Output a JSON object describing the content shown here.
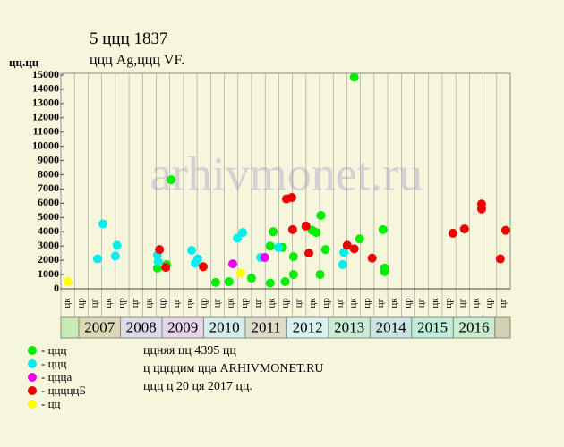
{
  "chart_data": {
    "type": "scatter",
    "title": "5 ццц 1837",
    "subtitle": "ццц Ag,ццц VF.",
    "y_label": "цц.цц",
    "watermark": "arhivmonet.ru",
    "ylim": [
      0,
      15000
    ],
    "yticks": [
      0,
      1000,
      2000,
      3000,
      4000,
      5000,
      6000,
      7000,
      8000,
      9000,
      10000,
      11000,
      12000,
      13000,
      14000,
      15000
    ],
    "xlim": [
      2006.57,
      2017.37
    ],
    "year_labels": [
      "2007",
      "2008",
      "2009",
      "2010",
      "2011",
      "2012",
      "2013",
      "2014",
      "2015",
      "2016"
    ],
    "year_colors": [
      "#ddd8b4",
      "#dcdce8",
      "#e6d4e8",
      "#d4ecec",
      "#dcdcc8",
      "#d8f2f2",
      "#c8ecd4",
      "#cce4e4",
      "#bfeed8",
      "#c8eccc"
    ],
    "quarter_labels": [
      "цк",
      "цр",
      "цг",
      "цк",
      "цр",
      "цг",
      "цк",
      "цр",
      "цг",
      "цк",
      "цр",
      "цг",
      "цк",
      "цр",
      "цг",
      "цк",
      "цр",
      "цг",
      "цк",
      "цр",
      "цг",
      "цк",
      "цр",
      "цг",
      "цк",
      "цр",
      "цг",
      "цк",
      "цр",
      "цг",
      "цк",
      "цр",
      "цг"
    ],
    "series": [
      {
        "name": "- ццц",
        "color": "#00ee00",
        "x": [
          2008.89,
          2009.11,
          2009.22,
          2010.29,
          2010.61,
          2011.15,
          2011.6,
          2011.67,
          2011.6,
          2011.9,
          2011.96,
          2012.16,
          2012.16,
          2012.61,
          2012.71,
          2012.82,
          2012.8,
          2012.93,
          2013.62,
          2013.75,
          2014.31,
          2014.35,
          2014.35
        ],
        "values": [
          1450,
          1700,
          7650,
          450,
          500,
          750,
          3000,
          4000,
          400,
          2900,
          500,
          2250,
          1000,
          4100,
          3950,
          5150,
          1000,
          2750,
          14850,
          3500,
          4150,
          1450,
          1200
        ]
      },
      {
        "name": "- ццц",
        "color": "#00eeee",
        "x": [
          2007.45,
          2007.58,
          2007.88,
          2007.92,
          2008.89,
          2008.91,
          2009.71,
          2009.8,
          2009.86,
          2010.81,
          2010.94,
          2011.37,
          2011.8,
          2013.37,
          2013.34
        ],
        "values": [
          2100,
          4550,
          2300,
          3050,
          2350,
          1900,
          2700,
          1800,
          2100,
          3550,
          3950,
          2200,
          2900,
          2550,
          1700
        ]
      },
      {
        "name": "- ццца",
        "color": "#ee00ee",
        "x": [
          2010.7,
          2011.47
        ],
        "values": [
          1750,
          2200
        ]
      },
      {
        "name": "- цццццБ",
        "color": "#ee0000",
        "x": [
          2008.94,
          2009.09,
          2009.99,
          2011.99,
          2012.12,
          2012.14,
          2012.46,
          2012.53,
          2013.45,
          2013.62,
          2014.05,
          2015.99,
          2016.27,
          2016.68,
          2016.68,
          2017.13,
          2017.26
        ],
        "values": [
          2750,
          1500,
          1550,
          6300,
          6400,
          4150,
          4400,
          2500,
          3050,
          2800,
          2150,
          3900,
          4200,
          5950,
          5600,
          2100,
          4100
        ]
      },
      {
        "name": "- цц",
        "color": "#ffff00",
        "x": [
          2006.74,
          2010.89
        ],
        "values": [
          500,
          1100
        ]
      }
    ],
    "notes": [
      "ццняя цц 4395 цц",
      "ц ццццим цца ARHIVMONET.RU",
      "ццц ц 20 ця 2017 цц."
    ]
  }
}
